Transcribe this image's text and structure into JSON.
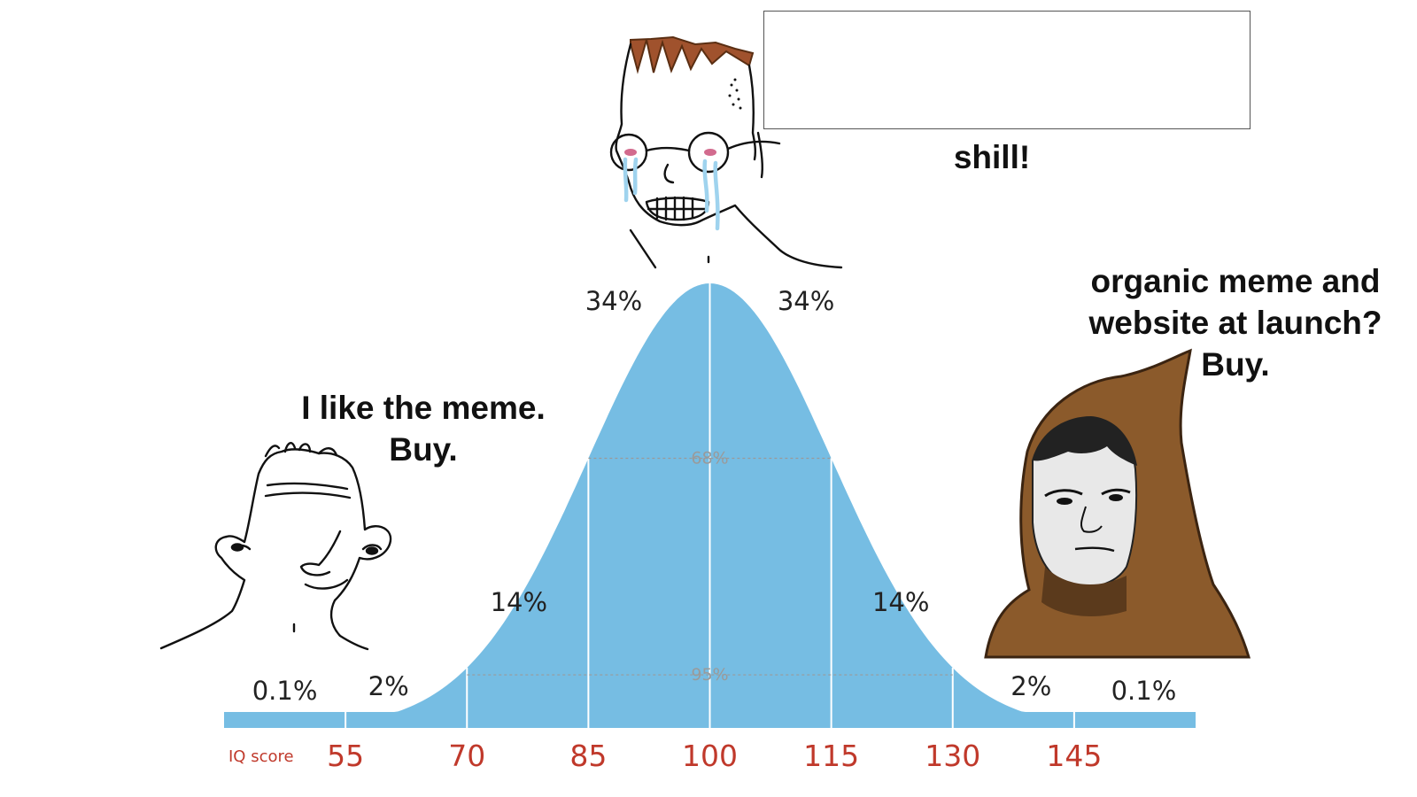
{
  "captions": {
    "left": [
      "I like the meme.",
      "Buy."
    ],
    "top": "shill!",
    "right": [
      "organic meme and",
      "website at launch?",
      "Buy."
    ]
  },
  "chart_data": {
    "type": "area",
    "curve": "normal distribution",
    "color": "#76BDE3",
    "axis_title": "IQ score",
    "x_ticks": [
      55,
      70,
      85,
      100,
      115,
      130,
      145
    ],
    "mean": 100,
    "sd": 15,
    "x_range": [
      40,
      160
    ],
    "segment_labels": [
      "0.1%",
      "2%",
      "14%",
      "34%",
      "34%",
      "14%",
      "2%",
      "0.1%"
    ],
    "inner_labels": [
      "68%",
      "95%"
    ]
  },
  "characters": [
    {
      "name": "wojak-left",
      "position": "left"
    },
    {
      "name": "wojak-crying-glasses",
      "position": "top"
    },
    {
      "name": "hooded-monk",
      "position": "right"
    }
  ],
  "colors": {
    "curve": "#76BDE3",
    "axis_labels": "#c0392b",
    "hood": "#8B5A2B",
    "hair": "#A0522D",
    "tears": "#9fd3ee"
  }
}
